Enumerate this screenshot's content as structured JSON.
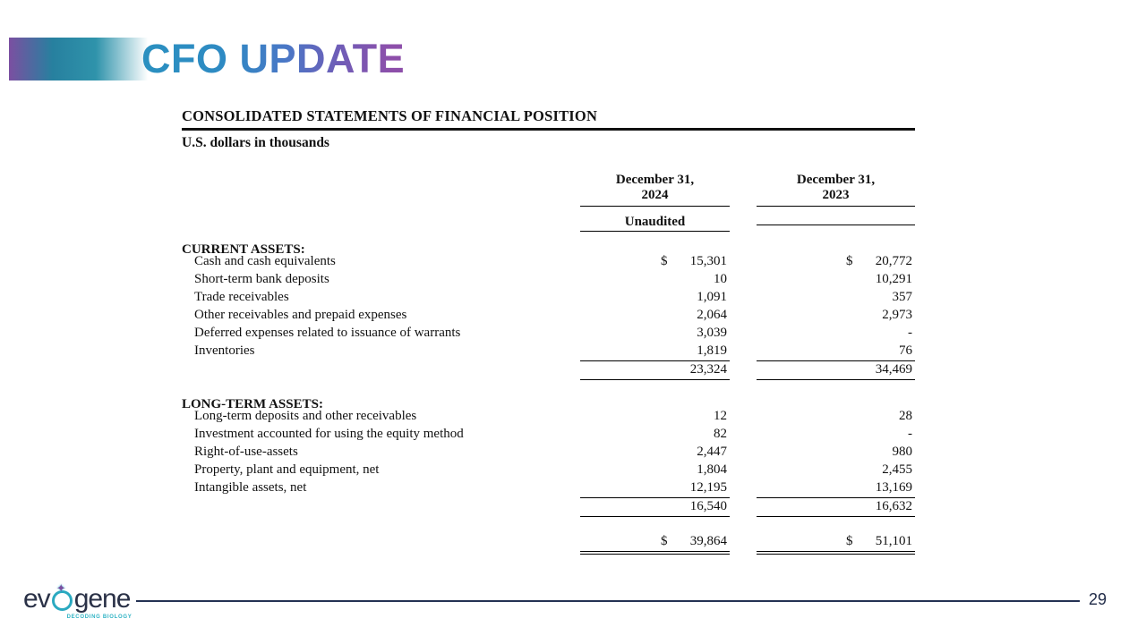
{
  "slide": {
    "title": "CFO UPDATE",
    "accent_colors": {
      "title_teal": "#2a90c0",
      "title_blue": "#4a77c6",
      "title_purple": "#8d4faa",
      "bar_purple": "#7b4fa1",
      "bar_teal": "#2f93ab",
      "footer_navy": "#243253",
      "logo_teal": "#2aa9c0"
    }
  },
  "statement": {
    "title": "CONSOLIDATED STATEMENTS OF FINANCIAL POSITION",
    "subtitle": "U.S. dollars in thousands",
    "columns": [
      {
        "line1": "December 31,",
        "line2": "2024",
        "note": "Unaudited"
      },
      {
        "line1": "December 31,",
        "line2": "2023",
        "note": ""
      }
    ],
    "sections": [
      {
        "header": "CURRENT ASSETS:",
        "rows": [
          {
            "label": "Cash and cash equivalents",
            "d1": "$",
            "v1": "15,301",
            "d2": "$",
            "v2": "20,772"
          },
          {
            "label": "Short-term bank deposits",
            "v1": "10",
            "v2": "10,291"
          },
          {
            "label": "Trade receivables",
            "v1": "1,091",
            "v2": "357"
          },
          {
            "label": "Other receivables and prepaid expenses",
            "v1": "2,064",
            "v2": "2,973"
          },
          {
            "label": "Deferred expenses related to issuance of warrants",
            "v1": "3,039",
            "v2": "-"
          },
          {
            "label": "Inventories",
            "v1": "1,819",
            "v2": "76"
          }
        ],
        "subtotal": {
          "v1": "23,324",
          "v2": "34,469"
        }
      },
      {
        "header": "LONG-TERM ASSETS:",
        "rows": [
          {
            "label": "Long-term deposits and other receivables",
            "v1": "12",
            "v2": "28"
          },
          {
            "label": "Investment accounted for using the equity method",
            "v1": "82",
            "v2": "-"
          },
          {
            "label": "Right-of-use-assets",
            "v1": "2,447",
            "v2": "980"
          },
          {
            "label": "Property, plant and equipment, net",
            "v1": "1,804",
            "v2": "2,455"
          },
          {
            "label": "Intangible assets, net",
            "v1": "12,195",
            "v2": "13,169"
          }
        ],
        "subtotal": {
          "v1": "16,540",
          "v2": "16,632"
        }
      }
    ],
    "total": {
      "d1": "$",
      "v1": "39,864",
      "d2": "$",
      "v2": "51,101"
    }
  },
  "footer": {
    "logo_ev": "ev",
    "logo_gene": "gene",
    "logo_tagline": "DECODING BIOLOGY",
    "page_number": "29"
  }
}
